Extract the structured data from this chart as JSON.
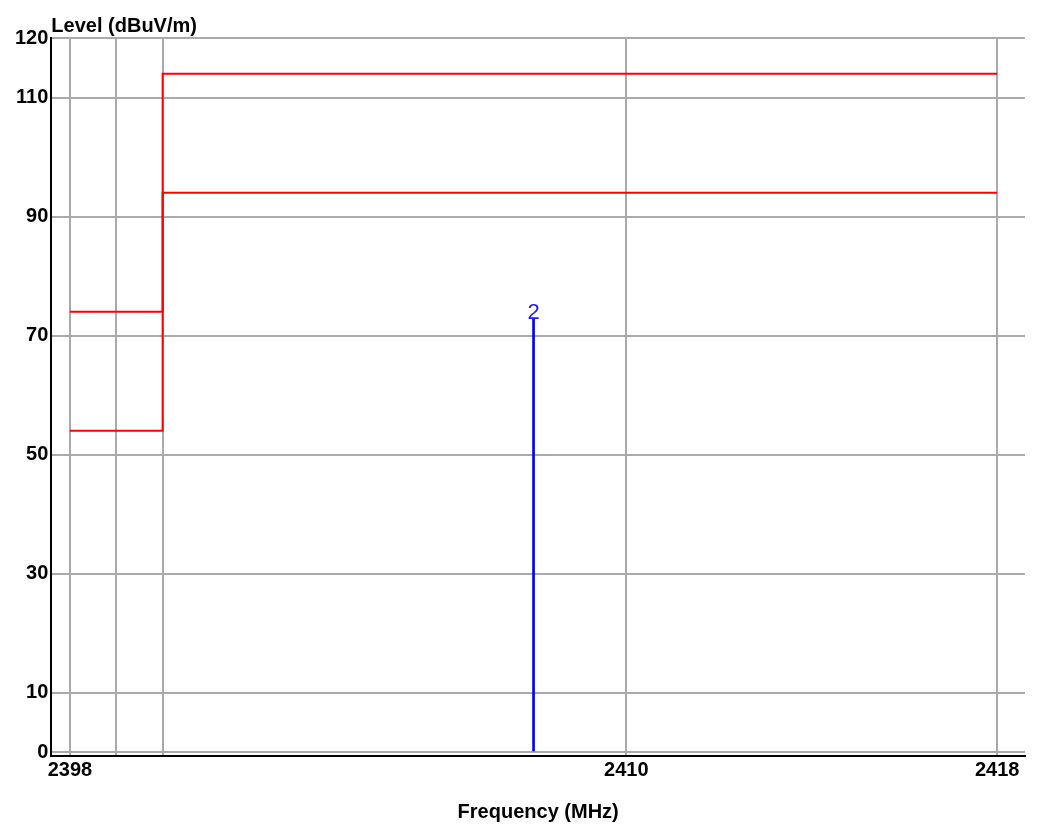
{
  "chart_data": {
    "type": "step",
    "xlabel": "Frequency (MHz)",
    "ylabel": "Level (dBuV/m)",
    "xlim": [
      2397.6,
      2418.6
    ],
    "ylim": [
      -0.6,
      120
    ],
    "xticks": [
      2398,
      {
        "value": 2399,
        "label": null
      },
      {
        "value": 2400,
        "label": null
      },
      2410,
      2418
    ],
    "yticks": [
      0,
      10,
      30,
      50,
      70,
      90,
      110,
      120
    ],
    "grid": true,
    "legend": false,
    "series": [
      {
        "color": "#ff0000",
        "x": [
          2398,
          2400,
          2418
        ],
        "values": [
          74,
          114,
          114
        ]
      },
      {
        "color": "#ff0000",
        "x": [
          2398,
          2400,
          2418
        ],
        "values": [
          54,
          94,
          94
        ]
      },
      {
        "type": "bar",
        "color": "#0000ff",
        "x": [
          2408.0
        ],
        "values": [
          72.9
        ]
      }
    ],
    "annotations": [
      {
        "text": "2",
        "x": 2408.0,
        "y": 72.9
      }
    ]
  }
}
